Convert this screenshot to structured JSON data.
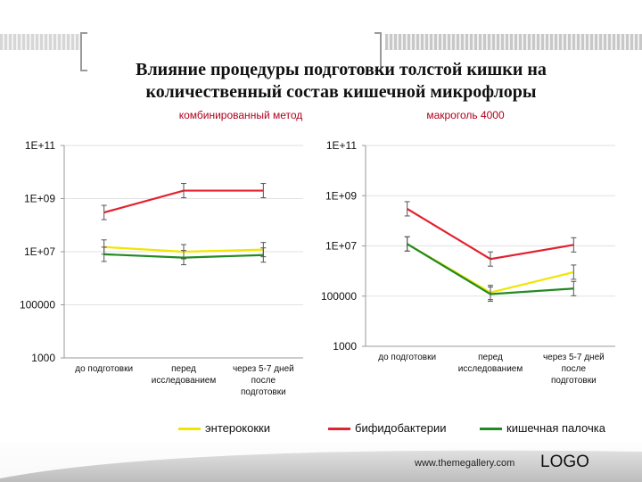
{
  "title": "Влияние процедуры подготовки толстой кишки на количественный состав кишечной микрофлоры",
  "footer": {
    "url": "www.themegallery.com",
    "logo": "LOGO"
  },
  "colors": {
    "enterococci": "#f0e600",
    "bifidobacteria": "#e2222e",
    "ecoli": "#218a21",
    "axis": "#999999",
    "grid": "#e2e2e2"
  },
  "chart_data": [
    {
      "type": "line",
      "title": "комбинированный метод",
      "y_scale": "log",
      "ylim": [
        1000,
        100000000000
      ],
      "y_ticks": [
        "1E+11",
        "1E+09",
        "1E+07",
        "100000",
        "1000"
      ],
      "categories": [
        "до подготовки",
        "перед исследованием",
        "через 5-7 дней после подготовки"
      ],
      "series": [
        {
          "name": "энтерококки",
          "values": [
            15000000,
            10000000,
            12000000
          ]
        },
        {
          "name": "бифидобактерии",
          "values": [
            300000000,
            2000000000,
            2000000000
          ]
        },
        {
          "name": "кишечная палочка",
          "values": [
            8000000,
            6000000,
            7500000
          ]
        }
      ]
    },
    {
      "type": "line",
      "title": "макроголь 4000",
      "y_scale": "log",
      "ylim": [
        1000,
        100000000000
      ],
      "y_ticks": [
        "1E+11",
        "1E+09",
        "1E+07",
        "100000",
        "1000"
      ],
      "categories": [
        "до подготовки",
        "перед исследованием",
        "через 5-7 дней после подготовки"
      ],
      "series": [
        {
          "name": "энтерококки",
          "values": [
            12000000,
            140000,
            900000
          ]
        },
        {
          "name": "бифидобактерии",
          "values": [
            300000000,
            3000000,
            11000000
          ]
        },
        {
          "name": "кишечная палочка",
          "values": [
            12000000,
            120000,
            200000
          ]
        }
      ]
    }
  ]
}
